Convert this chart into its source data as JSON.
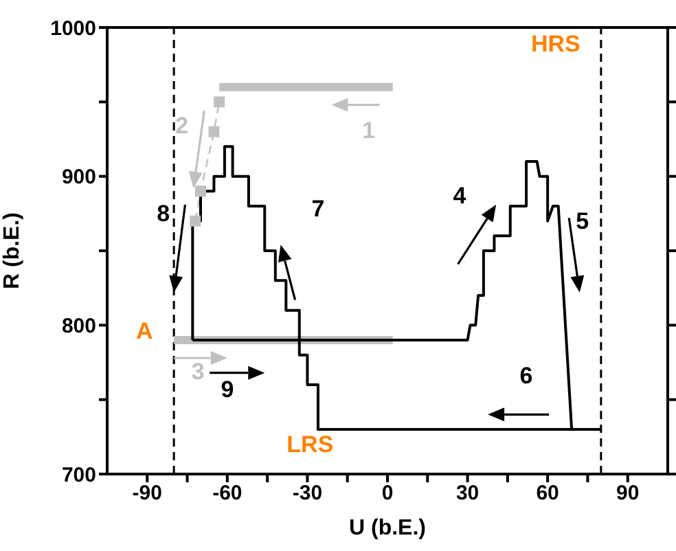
{
  "chart_data": {
    "type": "line",
    "xlabel": "U (b.E.)",
    "ylabel": "R (b.E.)",
    "xlim": [
      -105,
      105
    ],
    "ylim": [
      700,
      1000
    ],
    "xticks": [
      -90,
      {
        "value": -75,
        "label": null
      },
      -60,
      {
        "value": -45,
        "label": null
      },
      -30,
      {
        "value": -15,
        "label": null
      },
      0,
      {
        "value": 15,
        "label": null
      },
      30,
      {
        "value": 45,
        "label": null
      },
      60,
      {
        "value": 75,
        "label": null
      },
      90
    ],
    "yticks": [
      700,
      {
        "value": 750,
        "label": null
      },
      800,
      {
        "value": 850,
        "label": null
      },
      900,
      {
        "value": 950,
        "label": null
      },
      1000
    ],
    "series": [
      {
        "color": "#c0c0c0",
        "x": [
          -63,
          2
        ],
        "values": [
          960,
          960
        ]
      },
      {
        "color": "#c0c0c0",
        "x": [
          -80,
          2
        ],
        "values": [
          790,
          790
        ]
      },
      {
        "color": "#c0c0c0",
        "marker": "square",
        "line_style": "dashed",
        "x": [
          -72,
          -70,
          -65,
          -63
        ],
        "values": [
          870,
          890,
          930,
          950
        ]
      },
      {
        "color": "#000000",
        "x": [
          -73,
          -73,
          -70,
          -70,
          -65,
          -65,
          -61,
          -61,
          -58,
          -58,
          -52,
          -52,
          -46,
          -46,
          -42,
          -42,
          -38,
          -38,
          -33,
          -33,
          -30,
          -30,
          -26,
          -26,
          80
        ],
        "values": [
          790,
          870,
          870,
          890,
          890,
          900,
          900,
          920,
          920,
          900,
          900,
          880,
          880,
          850,
          850,
          830,
          830,
          810,
          810,
          780,
          780,
          760,
          760,
          730,
          730
        ]
      },
      {
        "color": "#000000",
        "x": [
          -73,
          30,
          31,
          33,
          34,
          36,
          36,
          40,
          40,
          46,
          46,
          52,
          52,
          56,
          57,
          60,
          60,
          62,
          64,
          69,
          80
        ],
        "values": [
          790,
          790,
          800,
          800,
          820,
          820,
          850,
          850,
          860,
          860,
          880,
          880,
          910,
          910,
          900,
          900,
          870,
          880,
          880,
          730,
          730
        ]
      }
    ],
    "ref_lines": [
      {
        "axis": "x",
        "value": -80,
        "color": "#000000",
        "line_style": "dashed"
      },
      {
        "axis": "x",
        "value": 80,
        "color": "#000000",
        "line_style": "dashed"
      }
    ],
    "annotations": [
      "HRS",
      "LRS",
      "A",
      "1",
      "2",
      "3",
      "4",
      "5",
      "6",
      "7",
      {
        "text": "8",
        "x": -80,
        "y": 822
      },
      "9"
    ]
  }
}
